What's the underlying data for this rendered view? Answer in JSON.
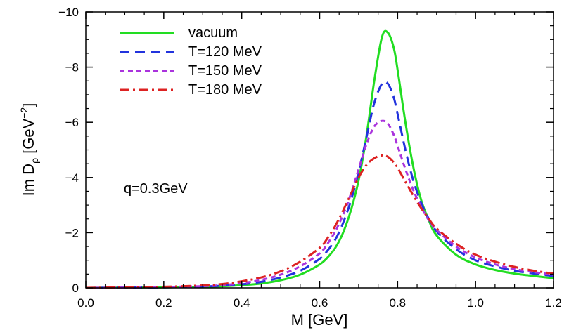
{
  "chart_data": {
    "type": "line",
    "title": "",
    "xlabel": "M [GeV]",
    "ylabel": {
      "main": "Im D",
      "sub": "ρ",
      "unit_open": " [GeV",
      "unit_sup": "−2",
      "unit_close": "]"
    },
    "xlim": [
      0.0,
      1.2
    ],
    "ylim": [
      0,
      -10
    ],
    "x_ticks": [
      0.0,
      0.2,
      0.4,
      0.6,
      0.8,
      1.0,
      1.2
    ],
    "x_tick_labels": [
      "0.0",
      "0.2",
      "0.4",
      "0.6",
      "0.8",
      "1.0",
      "1.2"
    ],
    "y_ticks": [
      0,
      -2,
      -4,
      -6,
      -8,
      -10
    ],
    "y_tick_labels": [
      "0",
      "−2",
      "−4",
      "−6",
      "−8",
      "−10"
    ],
    "grid": false,
    "legend_position": "top-left",
    "annotation": "q=0.3GeV",
    "x": [
      0.0,
      0.1,
      0.2,
      0.3,
      0.35,
      0.4,
      0.45,
      0.5,
      0.55,
      0.6,
      0.62,
      0.64,
      0.66,
      0.68,
      0.7,
      0.72,
      0.74,
      0.76,
      0.775,
      0.79,
      0.8,
      0.82,
      0.84,
      0.86,
      0.88,
      0.9,
      0.95,
      1.0,
      1.05,
      1.1,
      1.15,
      1.2
    ],
    "series": [
      {
        "name": "vacuum",
        "color": "#22dd22",
        "dash": "",
        "values": [
          0,
          -0.01,
          -0.02,
          -0.04,
          -0.06,
          -0.1,
          -0.16,
          -0.28,
          -0.48,
          -0.85,
          -1.1,
          -1.45,
          -2.0,
          -2.8,
          -3.9,
          -5.5,
          -7.5,
          -9.1,
          -9.25,
          -8.7,
          -7.9,
          -6.0,
          -4.4,
          -3.2,
          -2.45,
          -1.9,
          -1.2,
          -0.85,
          -0.65,
          -0.52,
          -0.43,
          -0.35
        ]
      },
      {
        "name": "T=120 MeV",
        "color": "#2233dd",
        "dash": "14 8",
        "values": [
          0,
          -0.01,
          -0.02,
          -0.05,
          -0.08,
          -0.13,
          -0.22,
          -0.38,
          -0.62,
          -1.05,
          -1.35,
          -1.75,
          -2.35,
          -3.15,
          -4.2,
          -5.45,
          -6.7,
          -7.4,
          -7.4,
          -6.9,
          -6.3,
          -5.0,
          -3.9,
          -3.1,
          -2.5,
          -2.05,
          -1.4,
          -1.0,
          -0.78,
          -0.62,
          -0.52,
          -0.43
        ]
      },
      {
        "name": "T=150 MeV",
        "color": "#aa33dd",
        "dash": "7 5",
        "values": [
          0,
          -0.01,
          -0.03,
          -0.06,
          -0.1,
          -0.17,
          -0.29,
          -0.48,
          -0.78,
          -1.25,
          -1.6,
          -2.05,
          -2.65,
          -3.4,
          -4.3,
          -5.2,
          -5.85,
          -6.05,
          -5.95,
          -5.55,
          -5.15,
          -4.3,
          -3.55,
          -2.95,
          -2.45,
          -2.1,
          -1.5,
          -1.1,
          -0.85,
          -0.68,
          -0.57,
          -0.48
        ]
      },
      {
        "name": "T=180 MeV",
        "color": "#dd2222",
        "dash": "14 5 3 5",
        "values": [
          0,
          -0.02,
          -0.04,
          -0.09,
          -0.14,
          -0.24,
          -0.38,
          -0.6,
          -0.95,
          -1.45,
          -1.8,
          -2.25,
          -2.8,
          -3.4,
          -4.0,
          -4.45,
          -4.7,
          -4.8,
          -4.75,
          -4.55,
          -4.35,
          -3.85,
          -3.35,
          -2.9,
          -2.5,
          -2.15,
          -1.6,
          -1.2,
          -0.95,
          -0.76,
          -0.62,
          -0.52
        ]
      }
    ]
  }
}
